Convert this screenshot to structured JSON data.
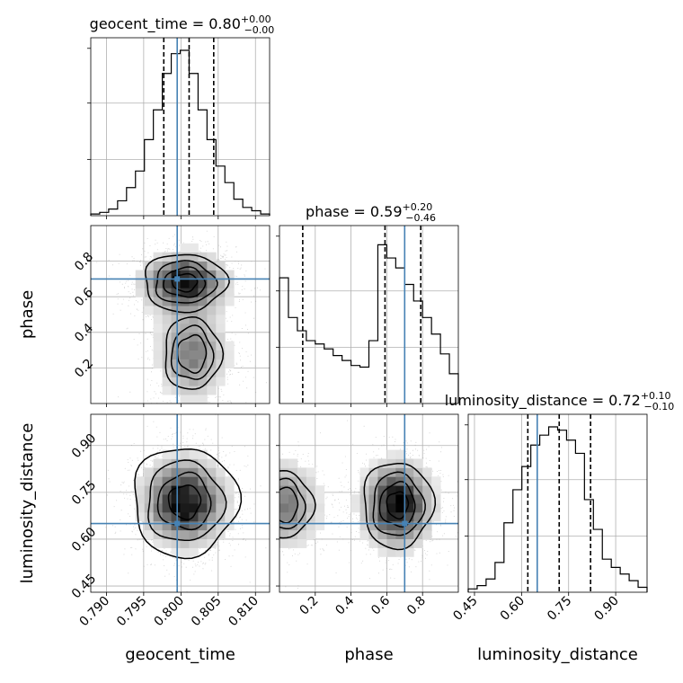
{
  "chart_data": {
    "type": "corner",
    "parameters": [
      "geocent_time",
      "phase",
      "luminosity_distance"
    ],
    "truth_color": "#4682b4",
    "truths": {
      "geocent_time": 0.7995,
      "phase": 0.7,
      "luminosity_distance": 0.65
    },
    "ranges": {
      "geocent_time": [
        0.7879,
        0.8119
      ],
      "phase": [
        0.0,
        1.0
      ],
      "luminosity_distance": [
        0.43,
        1.0
      ]
    },
    "ticks": {
      "geocent_time": [
        0.79,
        0.795,
        0.8,
        0.805,
        0.81
      ],
      "phase": [
        0.2,
        0.4,
        0.6,
        0.8
      ],
      "luminosity_distance": [
        0.45,
        0.6,
        0.75,
        0.9
      ]
    },
    "tick_labels": {
      "geocent_time": [
        "0.790",
        "0.795",
        "0.800",
        "0.805",
        "0.810"
      ],
      "phase": [
        "0.2",
        "0.4",
        "0.6",
        "0.8"
      ],
      "luminosity_distance": [
        "0.45",
        "0.60",
        "0.75",
        "0.90"
      ]
    },
    "axis_labels": {
      "geocent_time": "geocent_time",
      "phase": "phase",
      "luminosity_distance": "luminosity_distance"
    },
    "titles": [
      {
        "param": "geocent_time",
        "prefix": "geocent_time = 0.80",
        "plus": "+0.00",
        "minus": "−0.00"
      },
      {
        "param": "phase",
        "prefix": "phase = 0.59",
        "plus": "+0.20",
        "minus": "−0.46"
      },
      {
        "param": "luminosity_distance",
        "prefix": "luminosity_distance = 0.72",
        "plus": "+0.10",
        "minus": "−0.10"
      }
    ],
    "quantiles": {
      "geocent_time": [
        0.7977,
        0.8011,
        0.8044
      ],
      "phase": [
        0.13,
        0.59,
        0.79
      ],
      "luminosity_distance": [
        0.62,
        0.72,
        0.82
      ]
    },
    "histograms": {
      "geocent_time": {
        "edges": [
          0.7879,
          0.7891,
          0.7903,
          0.7915,
          0.7927,
          0.7939,
          0.7951,
          0.7963,
          0.7975,
          0.7987,
          0.7999,
          0.8011,
          0.8023,
          0.8035,
          0.8047,
          0.8059,
          0.8071,
          0.8083,
          0.8095,
          0.8107,
          0.8119
        ],
        "counts": [
          0.01,
          0.02,
          0.04,
          0.09,
          0.17,
          0.27,
          0.46,
          0.64,
          0.86,
          0.98,
          1.0,
          0.86,
          0.64,
          0.46,
          0.3,
          0.2,
          0.1,
          0.05,
          0.03,
          0.01
        ]
      },
      "phase": {
        "edges": [
          0.0,
          0.05,
          0.1,
          0.15,
          0.2,
          0.25,
          0.3,
          0.35,
          0.4,
          0.45,
          0.5,
          0.55,
          0.6,
          0.65,
          0.7,
          0.75,
          0.8,
          0.85,
          0.9,
          0.95,
          1.0
        ],
        "counts": [
          0.76,
          0.52,
          0.44,
          0.38,
          0.36,
          0.33,
          0.29,
          0.26,
          0.23,
          0.22,
          0.38,
          0.96,
          0.88,
          0.82,
          0.72,
          0.62,
          0.52,
          0.42,
          0.3,
          0.18
        ]
      },
      "luminosity_distance": {
        "edges": [
          0.43,
          0.4585,
          0.487,
          0.5155,
          0.544,
          0.5725,
          0.601,
          0.6295,
          0.658,
          0.6865,
          0.715,
          0.7435,
          0.772,
          0.8005,
          0.829,
          0.8575,
          0.886,
          0.9145,
          0.943,
          0.9715,
          1.0
        ],
        "counts": [
          0.02,
          0.04,
          0.08,
          0.18,
          0.42,
          0.62,
          0.76,
          0.89,
          0.95,
          1.0,
          0.98,
          0.92,
          0.84,
          0.56,
          0.38,
          0.2,
          0.15,
          0.11,
          0.07,
          0.03
        ]
      }
    },
    "pairs": [
      {
        "x": "geocent_time",
        "y": "phase",
        "modes": [
          {
            "cx": 0.8005,
            "cy": 0.68,
            "sx": 0.0034,
            "sy": 0.1,
            "w": 0.62
          },
          {
            "cx": 0.8015,
            "cy": 0.28,
            "sx": 0.003,
            "sy": 0.16,
            "w": 0.38
          }
        ]
      },
      {
        "x": "geocent_time",
        "y": "luminosity_distance",
        "modes": [
          {
            "cx": 0.8005,
            "cy": 0.72,
            "sx": 0.0034,
            "sy": 0.085,
            "w": 1.0
          }
        ]
      },
      {
        "x": "phase",
        "y": "luminosity_distance",
        "modes": [
          {
            "cx": 0.66,
            "cy": 0.71,
            "sx": 0.12,
            "sy": 0.085,
            "w": 0.62
          },
          {
            "cx": 0.02,
            "cy": 0.71,
            "sx": 0.13,
            "sy": 0.085,
            "w": 0.38
          }
        ]
      }
    ]
  }
}
